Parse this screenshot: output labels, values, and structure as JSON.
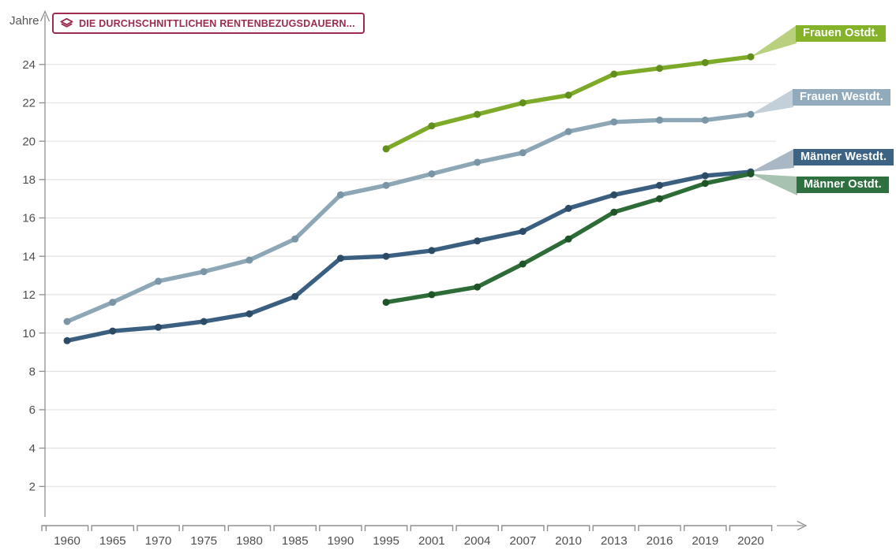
{
  "title_badge": {
    "text": "DIE DURCHSCHNITTLICHEN RENTENBEZUGSDAUERN...",
    "icon": "layers-icon",
    "color": "#9c2b4e"
  },
  "chart_data": {
    "type": "line",
    "title": "Die durchschnittlichen Rentenbezugsdauern",
    "ylabel": "Jahre",
    "xlabel": "",
    "ylim": [
      0,
      25
    ],
    "y_ticks": [
      2,
      4,
      6,
      8,
      10,
      12,
      14,
      16,
      18,
      20,
      22,
      24
    ],
    "grid": "horizontal",
    "legend_position": "right-callouts",
    "categories": [
      "1960",
      "1965",
      "1970",
      "1975",
      "1980",
      "1985",
      "1990",
      "1995",
      "2001",
      "2004",
      "2007",
      "2010",
      "2013",
      "2016",
      "2019",
      "2020"
    ],
    "series": [
      {
        "id": "frauen_ost",
        "name": "Frauen Ostdt.",
        "color": "#7dab29",
        "point_color": "#628e1d",
        "badge_color": "#84b32a",
        "tail_color": "#b9d07f",
        "values": [
          null,
          null,
          null,
          null,
          null,
          null,
          null,
          19.6,
          20.8,
          21.4,
          22.0,
          22.4,
          23.5,
          23.8,
          24.1,
          24.4
        ]
      },
      {
        "id": "frauen_west",
        "name": "Frauen Westdt.",
        "color": "#8da7b6",
        "point_color": "#7a95a5",
        "badge_color": "#91abbc",
        "tail_color": "#c3cfd9",
        "values": [
          10.6,
          11.6,
          12.7,
          13.2,
          13.8,
          14.9,
          17.2,
          17.7,
          18.3,
          18.9,
          19.4,
          20.5,
          21.0,
          21.1,
          21.1,
          21.4
        ]
      },
      {
        "id": "maenner_west",
        "name": "Männer Westdt.",
        "color": "#3a5f80",
        "point_color": "#2c4b67",
        "badge_color": "#3d6384",
        "tail_color": "#aab8c5",
        "values": [
          9.6,
          10.1,
          10.3,
          10.6,
          11.0,
          11.9,
          13.9,
          14.0,
          14.3,
          14.8,
          15.3,
          16.5,
          17.2,
          17.7,
          18.2,
          18.4
        ]
      },
      {
        "id": "maenner_ost",
        "name": "Männer Ostdt.",
        "color": "#2d6b37",
        "point_color": "#1f5429",
        "badge_color": "#2f7040",
        "tail_color": "#a7c2ae",
        "values": [
          null,
          null,
          null,
          null,
          null,
          null,
          null,
          11.6,
          12.0,
          12.4,
          13.6,
          14.9,
          16.3,
          17.0,
          17.8,
          18.3
        ]
      }
    ],
    "axis_color": "#8f8f8f",
    "grid_color": "#e3e3e3",
    "tick_label_color": "#4f4f4f"
  }
}
